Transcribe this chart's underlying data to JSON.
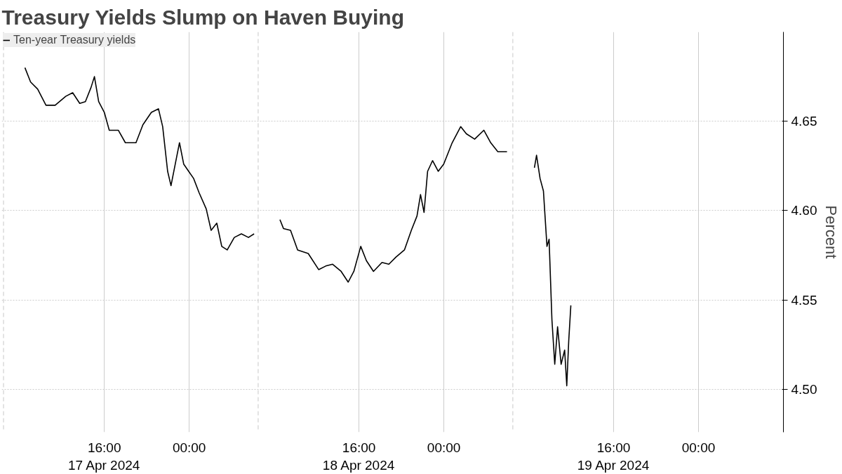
{
  "chart_data": {
    "type": "line",
    "title": "Treasury Yields Slump on Haven Buying",
    "ylabel": "Percent",
    "x": [
      "2024-04-17T08:31",
      "2024-04-17T09:03",
      "2024-04-17T09:43",
      "2024-04-17T10:30",
      "2024-04-17T11:22",
      "2024-04-17T12:22",
      "2024-04-17T13:01",
      "2024-04-17T13:41",
      "2024-04-17T14:13",
      "2024-04-17T14:45",
      "2024-04-17T15:04",
      "2024-04-17T15:28",
      "2024-04-17T16:00",
      "2024-04-17T16:28",
      "2024-04-17T17:19",
      "2024-04-17T17:59",
      "2024-04-17T18:59",
      "2024-04-17T19:38",
      "2024-04-17T20:26",
      "2024-04-17T21:06",
      "2024-04-17T21:30",
      "2024-04-17T21:58",
      "2024-04-17T22:17",
      "2024-04-17T22:45",
      "2024-04-17T23:05",
      "2024-04-17T23:29",
      "2024-04-17T23:57",
      "2024-04-18T00:25",
      "2024-04-18T00:56",
      "2024-04-18T01:36",
      "2024-04-18T02:04",
      "2024-04-18T02:36",
      "2024-04-18T03:04",
      "2024-04-18T03:35",
      "2024-04-18T04:15",
      "2024-04-18T04:55",
      "2024-04-18T05:35",
      "2024-04-18T06:07",
      "2024-04-18T07:30",
      "2024-04-18T08:33",
      "2024-04-18T08:53",
      "2024-04-18T09:33",
      "2024-04-18T10:13",
      "2024-04-18T11:13",
      "2024-04-18T12:12",
      "2024-04-18T12:52",
      "2024-04-18T13:31",
      "2024-04-18T14:19",
      "2024-04-18T14:59",
      "2024-04-18T15:31",
      "2024-04-18T16:10",
      "2024-04-18T16:42",
      "2024-04-18T17:22",
      "2024-04-18T18:10",
      "2024-04-18T18:49",
      "2024-04-18T19:29",
      "2024-04-18T20:17",
      "2024-04-18T20:56",
      "2024-04-18T21:28",
      "2024-04-18T21:48",
      "2024-04-18T22:08",
      "2024-04-18T22:28",
      "2024-04-18T22:56",
      "2024-04-18T23:28",
      "2024-04-18T23:59",
      "2024-04-19T00:47",
      "2024-04-19T01:35",
      "2024-04-19T02:07",
      "2024-04-19T02:54",
      "2024-04-19T03:46",
      "2024-04-19T04:25",
      "2024-04-19T05:05",
      "2024-04-19T05:57",
      "2024-04-19T07:30",
      "2024-04-19T08:32",
      "2024-04-19T08:44",
      "2024-04-19T09:04",
      "2024-04-19T09:23",
      "2024-04-19T09:43",
      "2024-04-19T09:55",
      "2024-04-19T10:11",
      "2024-04-19T10:27",
      "2024-04-19T10:43",
      "2024-04-19T11:03",
      "2024-04-19T11:23",
      "2024-04-19T11:35",
      "2024-04-19T11:46",
      "2024-04-19T11:58"
    ],
    "series": [
      {
        "name": "Ten-year Treasury yields",
        "color": "#000000",
        "values": [
          4.68,
          4.672,
          4.668,
          4.659,
          4.659,
          4.664,
          4.666,
          4.66,
          4.661,
          4.669,
          4.675,
          4.661,
          4.655,
          4.645,
          4.645,
          4.638,
          4.638,
          4.648,
          4.655,
          4.657,
          4.647,
          4.622,
          4.614,
          4.628,
          4.638,
          4.626,
          4.622,
          4.618,
          4.61,
          4.601,
          4.589,
          4.593,
          4.58,
          4.578,
          4.585,
          4.587,
          4.585,
          4.587,
          null,
          4.595,
          4.59,
          4.589,
          4.578,
          4.576,
          4.567,
          4.569,
          4.57,
          4.566,
          4.56,
          4.566,
          4.58,
          4.572,
          4.566,
          4.571,
          4.57,
          4.574,
          4.578,
          4.589,
          4.597,
          4.609,
          4.599,
          4.622,
          4.628,
          4.622,
          4.626,
          4.638,
          4.647,
          4.643,
          4.64,
          4.645,
          4.638,
          4.633,
          4.633,
          null,
          4.624,
          4.631,
          4.618,
          4.611,
          4.58,
          4.584,
          4.539,
          4.514,
          4.535,
          4.514,
          4.522,
          4.502,
          4.527,
          4.547
        ]
      }
    ],
    "xlim": [
      "2024-04-17T06:20",
      "2024-04-20T08:00"
    ],
    "xticks": [
      {
        "value": "2024-04-17T16:00",
        "label": "16:00\n17 Apr 2024"
      },
      {
        "value": "2024-04-18T00:00",
        "label": "00:00"
      },
      {
        "value": "2024-04-18T16:00",
        "label": "16:00\n18 Apr 2024"
      },
      {
        "value": "2024-04-19T00:00",
        "label": "00:00"
      },
      {
        "value": "2024-04-19T16:00",
        "label": "16:00\n19 Apr 2024"
      },
      {
        "value": "2024-04-20T00:00",
        "label": "00:00"
      }
    ],
    "ylim": [
      4.476,
      4.7
    ],
    "yticks": [
      {
        "value": 4.5,
        "label": "4.50"
      },
      {
        "value": 4.55,
        "label": "4.55"
      },
      {
        "value": 4.6,
        "label": "4.60"
      },
      {
        "value": 4.65,
        "label": "4.65"
      }
    ],
    "ref_lines": [
      {
        "axis": "x",
        "value": "2024-04-17T06:30",
        "label": null,
        "color": "#c8c8c8",
        "line_style": "dashed"
      },
      {
        "axis": "x",
        "value": "2024-04-18T06:30",
        "label": null,
        "color": "#c8c8c8",
        "line_style": "dashed"
      },
      {
        "axis": "x",
        "value": "2024-04-19T06:30",
        "label": null,
        "color": "#c8c8c8",
        "line_style": "dashed"
      }
    ],
    "grid": true,
    "legend": "top left",
    "line_style": "solid",
    "marker": "none"
  }
}
